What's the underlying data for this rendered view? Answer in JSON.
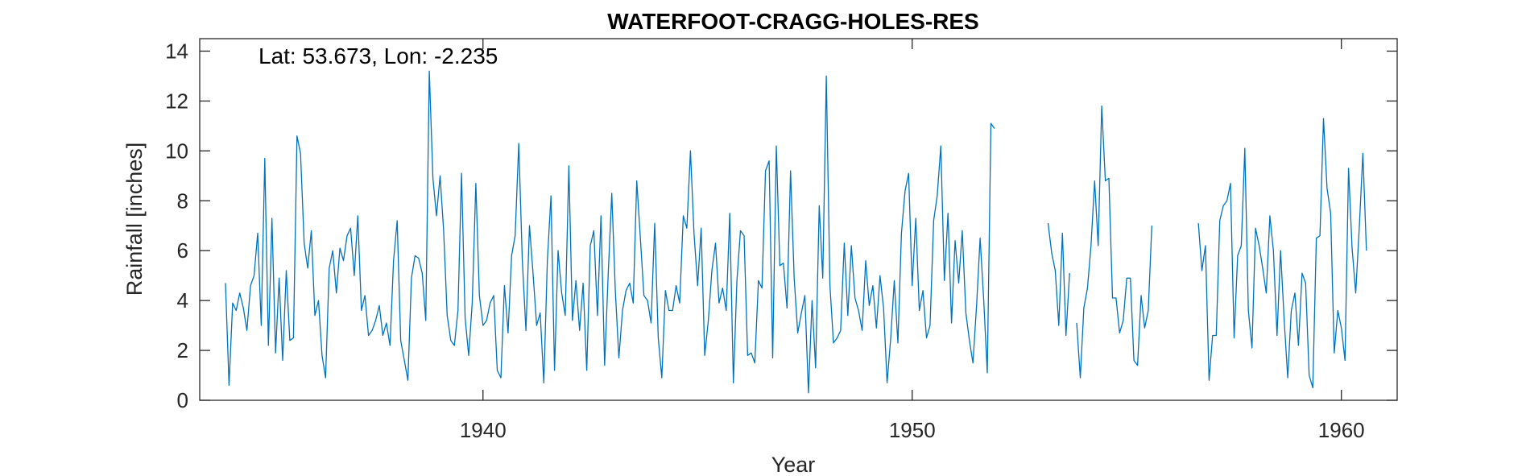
{
  "chart_data": {
    "type": "line",
    "title": "WATERFOOT-CRAGG-HOLES-RES",
    "annotation": "Lat: 53.673, Lon: -2.235",
    "xlabel": "Year",
    "ylabel": "Rainfall [inches]",
    "xlim": [
      1933.4,
      1961.3
    ],
    "ylim": [
      0,
      14.5
    ],
    "xticks": [
      1940,
      1950,
      1960
    ],
    "yticks": [
      0,
      2,
      4,
      6,
      8,
      10,
      12,
      14
    ],
    "grid": false,
    "series": [
      {
        "start_year": 1934,
        "step": 0.0833333,
        "values": [
          4.7,
          0.6,
          3.9,
          3.6,
          4.3,
          3.7,
          2.8,
          4.6,
          5.0,
          6.7,
          3.0,
          9.7,
          2.2,
          7.3,
          1.9,
          4.9,
          1.6,
          5.2,
          2.4,
          2.5,
          10.6,
          9.9,
          6.3,
          5.3,
          6.8,
          3.4,
          4.0,
          1.8,
          0.9,
          5.3,
          6.0,
          4.3,
          6.1,
          5.6,
          6.6,
          6.9,
          5.0,
          7.4,
          3.6,
          4.2,
          2.6,
          2.8,
          3.2,
          3.8,
          2.6,
          3.1,
          2.2,
          5.6,
          7.2,
          2.4,
          1.6,
          0.8,
          4.9,
          5.8,
          5.7,
          5.1,
          3.2,
          13.2,
          8.9,
          7.4,
          9.0,
          6.8,
          3.4,
          2.4,
          2.2,
          3.6,
          9.1,
          3.3,
          1.8,
          3.9,
          8.7,
          4.2,
          3.0,
          3.2,
          3.9,
          4.2,
          1.2,
          0.9,
          4.6,
          2.7,
          5.8,
          6.6,
          10.3,
          5.6,
          2.8,
          7.0,
          5.1,
          3.0,
          3.5,
          0.7,
          5.6,
          8.2,
          1.2,
          6.0,
          4.3,
          3.4,
          9.4,
          3.2,
          4.8,
          2.8,
          4.7,
          1.2,
          6.2,
          6.8,
          3.4,
          7.4,
          1.4,
          5.0,
          8.3,
          4.4,
          1.7,
          3.6,
          4.4,
          4.7,
          3.9,
          8.8,
          6.5,
          4.2,
          4.0,
          3.1,
          7.1,
          2.5,
          0.9,
          4.4,
          3.6,
          3.6,
          4.6,
          3.9,
          7.4,
          6.9,
          10.0,
          6.7,
          4.6,
          6.9,
          1.8,
          3.2,
          5.2,
          6.3,
          3.9,
          4.5,
          3.6,
          7.5,
          0.7,
          4.8,
          6.8,
          6.6,
          1.8,
          1.9,
          1.5,
          4.8,
          4.5,
          9.2,
          9.6,
          1.7,
          10.2,
          5.4,
          5.5,
          3.7,
          9.2,
          4.9,
          2.7,
          3.5,
          4.2,
          0.3,
          4.0,
          1.3,
          7.8,
          4.9,
          13.0,
          4.6,
          2.3,
          2.5,
          2.8,
          6.3,
          3.4,
          6.2,
          4.1,
          3.6,
          2.8,
          5.6,
          3.8,
          4.6,
          2.9,
          5.0,
          3.7,
          0.7,
          2.5,
          4.8,
          2.3,
          6.7,
          8.4,
          9.1,
          4.6,
          7.3,
          3.6,
          4.4,
          2.5,
          3.0,
          7.2,
          8.2,
          10.2,
          4.8,
          7.5,
          3.1,
          6.4,
          4.7,
          6.8,
          3.5,
          2.4,
          1.5,
          3.8,
          6.5,
          4.0,
          1.1,
          11.1,
          10.9
        ]
      },
      {
        "start_year": 1953.1667,
        "step": 0.0833333,
        "values": [
          7.1,
          5.9,
          5.2,
          3.0,
          6.7,
          2.6,
          5.1,
          null,
          3.1,
          0.9,
          3.7,
          4.5,
          6.2,
          8.8,
          6.2,
          11.8,
          8.8,
          8.9,
          4.1,
          4.1,
          2.7,
          3.2,
          4.9,
          4.9,
          1.6,
          1.4,
          4.2,
          2.9,
          3.6,
          7.0
        ]
      },
      {
        "start_year": 1956.6667,
        "step": 0.0833333,
        "values": [
          7.1,
          5.2,
          6.2,
          0.8,
          2.6,
          2.6,
          7.2,
          7.8,
          8.0,
          8.7,
          2.5,
          5.8,
          6.2,
          10.1,
          3.6,
          2.1,
          6.9,
          6.2,
          5.3,
          4.3,
          7.4,
          6.0,
          2.6,
          6.0,
          3.2,
          0.9,
          3.6,
          4.3,
          2.2,
          5.1,
          4.7,
          1.0,
          0.5,
          6.5,
          6.6,
          11.3,
          8.5,
          7.5,
          1.9,
          3.6,
          2.9,
          1.6,
          9.3,
          6.1,
          4.3,
          6.9,
          9.9,
          6.0
        ]
      }
    ]
  }
}
